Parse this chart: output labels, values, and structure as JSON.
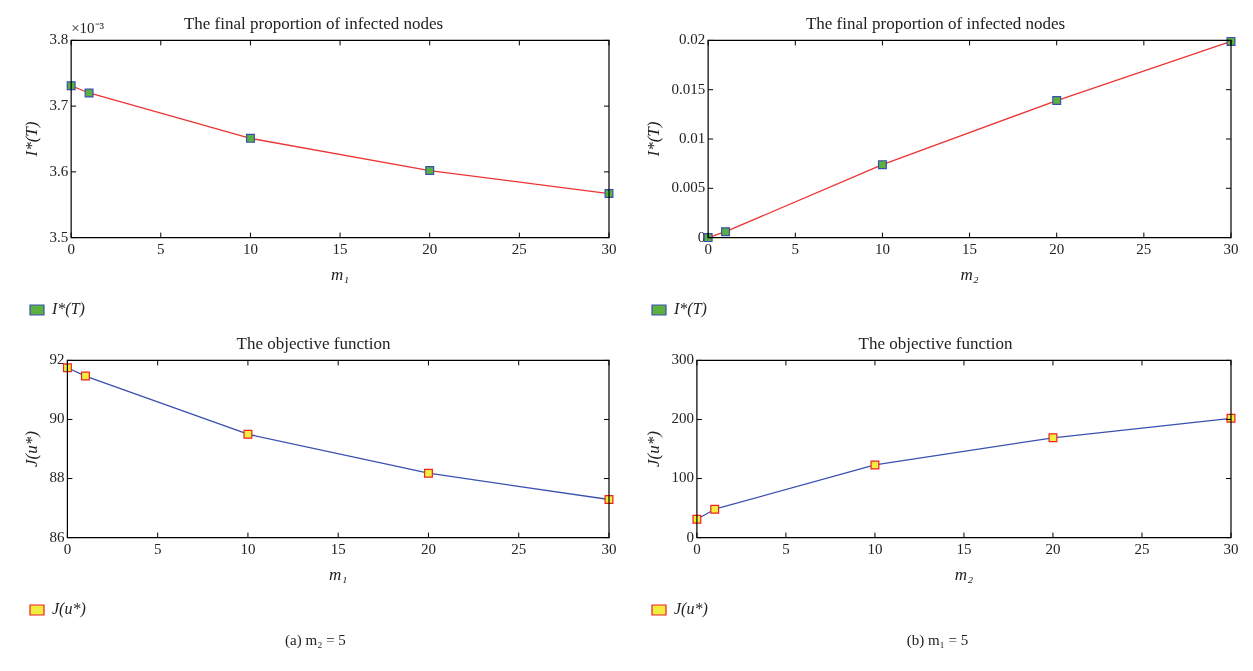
{
  "chart_data": [
    {
      "type": "line",
      "title": "The final proportion of infected nodes",
      "xlabel": "m₁",
      "ylabel": "I*(T)",
      "x": [
        0,
        1,
        10,
        20,
        30
      ],
      "xlim": [
        0,
        30
      ],
      "xticks": [
        0,
        5,
        10,
        15,
        20,
        25,
        30
      ],
      "ylim": [
        3.5,
        3.8
      ],
      "yticks": [
        3.5,
        3.6,
        3.7,
        3.8
      ],
      "marker": "square",
      "legend": "bottom left",
      "annotations": [
        "×10⁻³"
      ],
      "series": [
        {
          "name": "I*(T)",
          "color": "#ee3333",
          "colors": [
            "#5cb040",
            "#5cb040",
            "#5cb040",
            "#5cb040",
            "#5cb040"
          ],
          "values": [
            3.731,
            3.72,
            3.651,
            3.602,
            3.567
          ]
        }
      ]
    },
    {
      "type": "line",
      "title": "The final proportion of infected nodes",
      "xlabel": "m₂",
      "ylabel": "I*(T)",
      "x": [
        0,
        1,
        10,
        20,
        30
      ],
      "xlim": [
        0,
        30
      ],
      "xticks": [
        0,
        5,
        10,
        15,
        20,
        25,
        30
      ],
      "ylim": [
        0,
        0.02
      ],
      "yticks": [
        0,
        0.005,
        0.01,
        0.015,
        0.02
      ],
      "marker": "square",
      "legend": "bottom left",
      "series": [
        {
          "name": "I*(T)",
          "color": "#ee3333",
          "colors": [
            "#5cb040",
            "#5cb040",
            "#5cb040",
            "#5cb040",
            "#5cb040"
          ],
          "values": [
            0,
            0.0006,
            0.0074,
            0.0139,
            0.0199
          ]
        }
      ]
    },
    {
      "type": "line",
      "title": "The objective function",
      "xlabel": "m₁",
      "ylabel": "J(u*)",
      "x": [
        0,
        1,
        10,
        20,
        30
      ],
      "xlim": [
        0,
        30
      ],
      "xticks": [
        0,
        5,
        10,
        15,
        20,
        25,
        30
      ],
      "ylim": [
        86,
        92
      ],
      "yticks": [
        86,
        88,
        90,
        92
      ],
      "marker": "square",
      "legend": "bottom left",
      "annotations": [
        "(a)  m₂ = 5"
      ],
      "series": [
        {
          "name": "J(u*)",
          "color": "#3a50b0",
          "colors": [
            "#f0ee40",
            "#f0ee40",
            "#f0ee40",
            "#f0ee40",
            "#f0ee40"
          ],
          "values": [
            91.75,
            91.47,
            89.5,
            88.18,
            87.29
          ]
        }
      ]
    },
    {
      "type": "line",
      "title": "The objective function",
      "xlabel": "m₂",
      "ylabel": "J(u*)",
      "x": [
        0,
        1,
        10,
        20,
        30
      ],
      "xlim": [
        0,
        30
      ],
      "xticks": [
        0,
        5,
        10,
        15,
        20,
        25,
        30
      ],
      "ylim": [
        0,
        300
      ],
      "yticks": [
        0,
        100,
        200,
        300
      ],
      "marker": "square",
      "legend": "bottom left",
      "annotations": [
        "(b)  m₁ = 5"
      ],
      "series": [
        {
          "name": "J(u*)",
          "color": "#3a50b0",
          "colors": [
            "#f0ee40",
            "#f0ee40",
            "#f0ee40",
            "#f0ee40",
            "#f0ee40"
          ],
          "values": [
            31,
            48,
            123,
            169,
            202
          ]
        }
      ]
    }
  ]
}
